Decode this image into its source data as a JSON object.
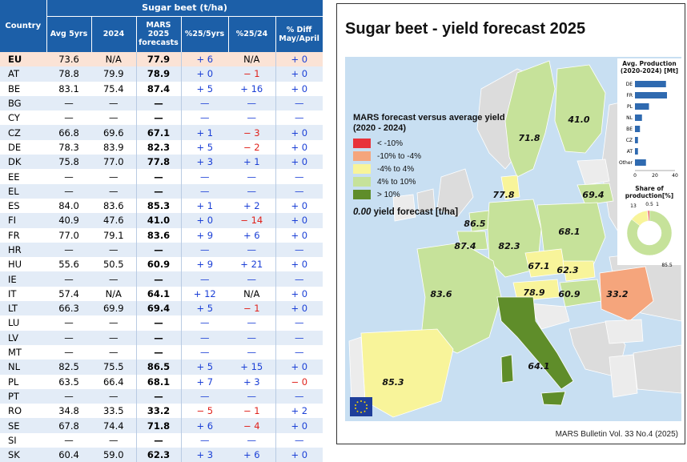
{
  "table": {
    "title": "Sugar beet (t/ha)",
    "headers": {
      "country": "Country",
      "avg": "Avg 5yrs",
      "y2024": "2024",
      "mars1": "MARS",
      "mars2": "2025",
      "mars3": "forecasts",
      "d5": "%25/5yrs",
      "d24": "%25/24",
      "diff1": "% Diff",
      "diff2": "May/April"
    },
    "rows": [
      {
        "c": "EU",
        "avg": "73.6",
        "y24": "N/A",
        "fc": "77.9",
        "d5": "+ 6",
        "d24": "N/A",
        "dma": "+ 0",
        "eu": true
      },
      {
        "c": "AT",
        "avg": "78.8",
        "y24": "79.9",
        "fc": "78.9",
        "d5": "+ 0",
        "d24": "− 1",
        "dma": "+ 0"
      },
      {
        "c": "BE",
        "avg": "83.1",
        "y24": "75.4",
        "fc": "87.4",
        "d5": "+ 5",
        "d24": "+ 16",
        "dma": "+ 0"
      },
      {
        "c": "BG",
        "avg": "—",
        "y24": "—",
        "fc": "—",
        "d5": "—",
        "d24": "—",
        "dma": "—"
      },
      {
        "c": "CY",
        "avg": "—",
        "y24": "—",
        "fc": "—",
        "d5": "—",
        "d24": "—",
        "dma": "—"
      },
      {
        "c": "CZ",
        "avg": "66.8",
        "y24": "69.6",
        "fc": "67.1",
        "d5": "+ 1",
        "d24": "− 3",
        "dma": "+ 0"
      },
      {
        "c": "DE",
        "avg": "78.3",
        "y24": "83.9",
        "fc": "82.3",
        "d5": "+ 5",
        "d24": "− 2",
        "dma": "+ 0"
      },
      {
        "c": "DK",
        "avg": "75.8",
        "y24": "77.0",
        "fc": "77.8",
        "d5": "+ 3",
        "d24": "+ 1",
        "dma": "+ 0"
      },
      {
        "c": "EE",
        "avg": "—",
        "y24": "—",
        "fc": "—",
        "d5": "—",
        "d24": "—",
        "dma": "—"
      },
      {
        "c": "EL",
        "avg": "—",
        "y24": "—",
        "fc": "—",
        "d5": "—",
        "d24": "—",
        "dma": "—"
      },
      {
        "c": "ES",
        "avg": "84.0",
        "y24": "83.6",
        "fc": "85.3",
        "d5": "+ 1",
        "d24": "+ 2",
        "dma": "+ 0"
      },
      {
        "c": "FI",
        "avg": "40.9",
        "y24": "47.6",
        "fc": "41.0",
        "d5": "+ 0",
        "d24": "− 14",
        "dma": "+ 0"
      },
      {
        "c": "FR",
        "avg": "77.0",
        "y24": "79.1",
        "fc": "83.6",
        "d5": "+ 9",
        "d24": "+ 6",
        "dma": "+ 0"
      },
      {
        "c": "HR",
        "avg": "—",
        "y24": "—",
        "fc": "—",
        "d5": "—",
        "d24": "—",
        "dma": "—"
      },
      {
        "c": "HU",
        "avg": "55.6",
        "y24": "50.5",
        "fc": "60.9",
        "d5": "+ 9",
        "d24": "+ 21",
        "dma": "+ 0"
      },
      {
        "c": "IE",
        "avg": "—",
        "y24": "—",
        "fc": "—",
        "d5": "—",
        "d24": "—",
        "dma": "—"
      },
      {
        "c": "IT",
        "avg": "57.4",
        "y24": "N/A",
        "fc": "64.1",
        "d5": "+ 12",
        "d24": "N/A",
        "dma": "+ 0"
      },
      {
        "c": "LT",
        "avg": "66.3",
        "y24": "69.9",
        "fc": "69.4",
        "d5": "+ 5",
        "d24": "− 1",
        "dma": "+ 0"
      },
      {
        "c": "LU",
        "avg": "—",
        "y24": "—",
        "fc": "—",
        "d5": "—",
        "d24": "—",
        "dma": "—"
      },
      {
        "c": "LV",
        "avg": "—",
        "y24": "—",
        "fc": "—",
        "d5": "—",
        "d24": "—",
        "dma": "—"
      },
      {
        "c": "MT",
        "avg": "—",
        "y24": "—",
        "fc": "—",
        "d5": "—",
        "d24": "—",
        "dma": "—"
      },
      {
        "c": "NL",
        "avg": "82.5",
        "y24": "75.5",
        "fc": "86.5",
        "d5": "+ 5",
        "d24": "+ 15",
        "dma": "+ 0"
      },
      {
        "c": "PL",
        "avg": "63.5",
        "y24": "66.4",
        "fc": "68.1",
        "d5": "+ 7",
        "d24": "+ 3",
        "dma": "− 0"
      },
      {
        "c": "PT",
        "avg": "—",
        "y24": "—",
        "fc": "—",
        "d5": "—",
        "d24": "—",
        "dma": "—"
      },
      {
        "c": "RO",
        "avg": "34.8",
        "y24": "33.5",
        "fc": "33.2",
        "d5": "− 5",
        "d24": "− 1",
        "dma": "+ 2"
      },
      {
        "c": "SE",
        "avg": "67.8",
        "y24": "74.4",
        "fc": "71.8",
        "d5": "+ 6",
        "d24": "− 4",
        "dma": "+ 0"
      },
      {
        "c": "SI",
        "avg": "—",
        "y24": "—",
        "fc": "—",
        "d5": "—",
        "d24": "—",
        "dma": "—"
      },
      {
        "c": "SK",
        "avg": "60.4",
        "y24": "59.0",
        "fc": "62.3",
        "d5": "+ 3",
        "d24": "+ 6",
        "dma": "+ 0"
      }
    ]
  },
  "map": {
    "title": "Sugar beet - yield forecast 2025",
    "legend_title": "MARS forecast versus average yield (2020 - 2024)",
    "legend": [
      {
        "label": "< -10%",
        "color": "#e8323a"
      },
      {
        "label": "-10% to -4%",
        "color": "#f5a57c"
      },
      {
        "label": "-4% to 4%",
        "color": "#f8f49a"
      },
      {
        "label": "4% to 10%",
        "color": "#c6e29a"
      },
      {
        "label": "> 10%",
        "color": "#5f8d2a"
      }
    ],
    "note_value": "0.00",
    "note_text": "yield forecast [t/ha]",
    "bulletin": "MARS Bulletin Vol. 33 No.4 (2025)",
    "labels": [
      {
        "c": "SE",
        "v": "71.8"
      },
      {
        "c": "FI",
        "v": "41.0"
      },
      {
        "c": "DK",
        "v": "77.8"
      },
      {
        "c": "LT",
        "v": "69.4"
      },
      {
        "c": "NL",
        "v": "86.5"
      },
      {
        "c": "BE",
        "v": "87.4"
      },
      {
        "c": "DE",
        "v": "82.3"
      },
      {
        "c": "PL",
        "v": "68.1"
      },
      {
        "c": "CZ",
        "v": "67.1"
      },
      {
        "c": "SK",
        "v": "62.3"
      },
      {
        "c": "FR",
        "v": "83.6"
      },
      {
        "c": "AT",
        "v": "78.9"
      },
      {
        "c": "HU",
        "v": "60.9"
      },
      {
        "c": "RO",
        "v": "33.2"
      },
      {
        "c": "IT",
        "v": "64.1"
      },
      {
        "c": "ES",
        "v": "85.3"
      }
    ],
    "production": {
      "title": "Avg. Production (2020-2024) [Mt]",
      "categories": [
        "DE",
        "FR",
        "PL",
        "NL",
        "BE",
        "CZ",
        "AT",
        "Other"
      ],
      "values": [
        31,
        32,
        14,
        7,
        5,
        3,
        3,
        11
      ],
      "ticks": [
        "0",
        "20",
        "40"
      ],
      "xlim": [
        0,
        40
      ]
    },
    "share": {
      "title": "Share of production[%]",
      "values": [
        85.5,
        13,
        0.5,
        1
      ],
      "labels": [
        "85.5",
        "13",
        "0.5",
        "1"
      ]
    }
  }
}
